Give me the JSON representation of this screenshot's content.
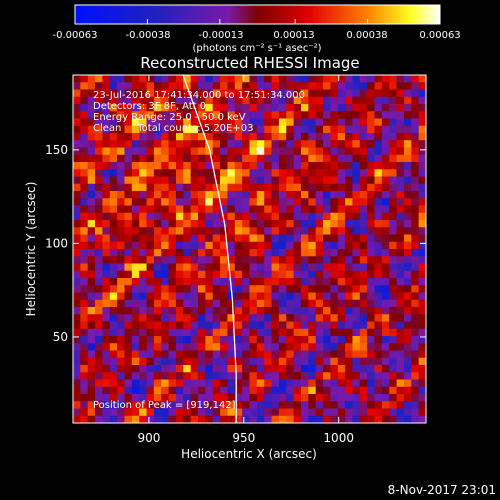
{
  "chart_data": {
    "type": "heatmap",
    "title": "Reconstructed RHESSI Image",
    "xlabel": "Heliocentric X (arcsec)",
    "ylabel": "Heliocentric Y (arcsec)",
    "xlim": [
      860,
      1046
    ],
    "ylim": [
      4,
      190
    ],
    "x_ticks": [
      "900",
      "950",
      "1000"
    ],
    "x_tick_values": [
      900,
      950,
      1000
    ],
    "y_ticks": [
      "50",
      "100",
      "150"
    ],
    "y_tick_values": [
      50,
      100,
      150
    ],
    "colorbar": {
      "ticks": [
        "-0.00063",
        "-0.00038",
        "-0.00013",
        "0.00013",
        "0.00038",
        "0.00063"
      ],
      "tick_values": [
        -0.00063,
        -0.00038,
        -0.00013,
        0.00013,
        0.00038,
        0.00063
      ],
      "range": [
        -0.00063,
        0.00063
      ],
      "unit_label": "(photons cm⁻² s⁻¹ asec⁻²)"
    },
    "annotations": [
      "23-Jul-2016 17:41:34.000 to 17:51:34.000",
      "Detectors: 3F 8F, Att 0",
      "Energy Range: 25.0 - 50.0 keV",
      "Clean     Total counts: 5.20E+03",
      "Position of Peak = [919,142]"
    ],
    "peak": {
      "x": 919,
      "y": 142
    },
    "limb_points": [
      [
        918,
        190
      ],
      [
        925,
        170
      ],
      [
        932,
        150
      ],
      [
        936,
        130
      ],
      [
        940,
        110
      ],
      [
        942,
        90
      ],
      [
        944,
        70
      ],
      [
        945,
        50
      ],
      [
        946,
        30
      ],
      [
        946,
        4
      ]
    ]
  },
  "footer_date": "8-Nov-2017 23:01",
  "colors": {
    "background": "#000000",
    "limb": "#ffffff",
    "text": "#ffffff"
  }
}
